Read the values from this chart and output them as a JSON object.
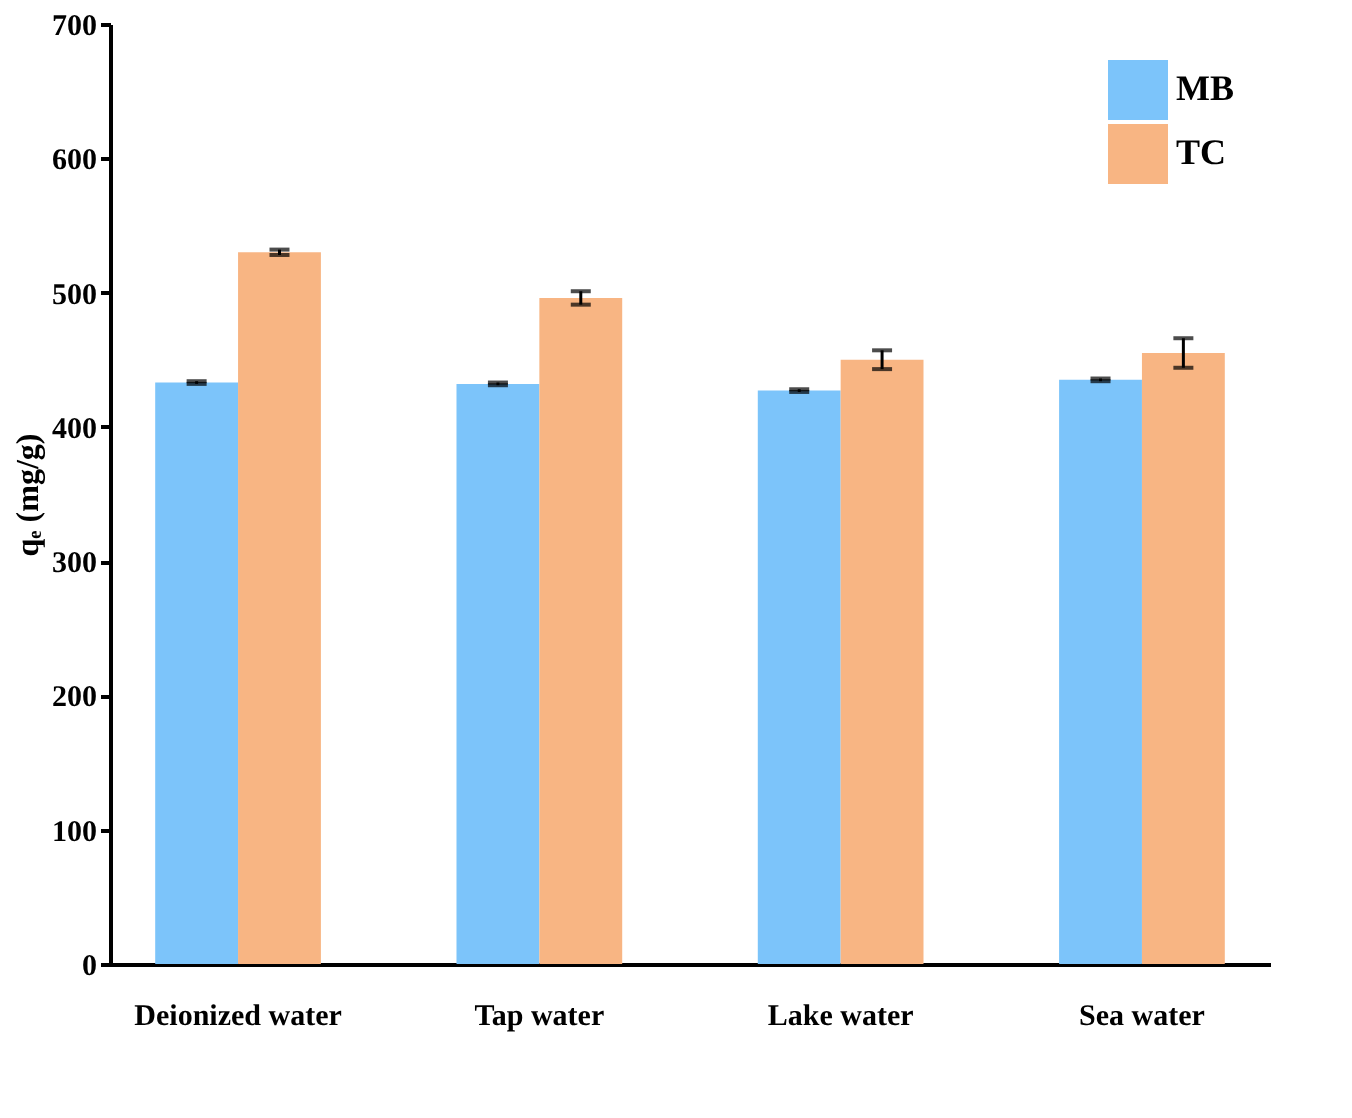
{
  "chart_data": {
    "type": "bar",
    "ylabel": "qₑ (mg/g)",
    "categories": [
      "Deionized water",
      "Tap water",
      "Lake water",
      "Sea water"
    ],
    "series": [
      {
        "name": "MB",
        "color": "#7cc4fa",
        "values": [
          433,
          432,
          427,
          435
        ],
        "errors": [
          1,
          1,
          1,
          1
        ]
      },
      {
        "name": "TC",
        "color": "#f8b583",
        "values": [
          530,
          496,
          450,
          455
        ],
        "errors": [
          2,
          5,
          7,
          11
        ]
      }
    ],
    "ylim": [
      0,
      700
    ],
    "yticks": [
      0,
      100,
      200,
      300,
      400,
      500,
      600,
      700
    ],
    "grid": false,
    "legend": "top right"
  }
}
